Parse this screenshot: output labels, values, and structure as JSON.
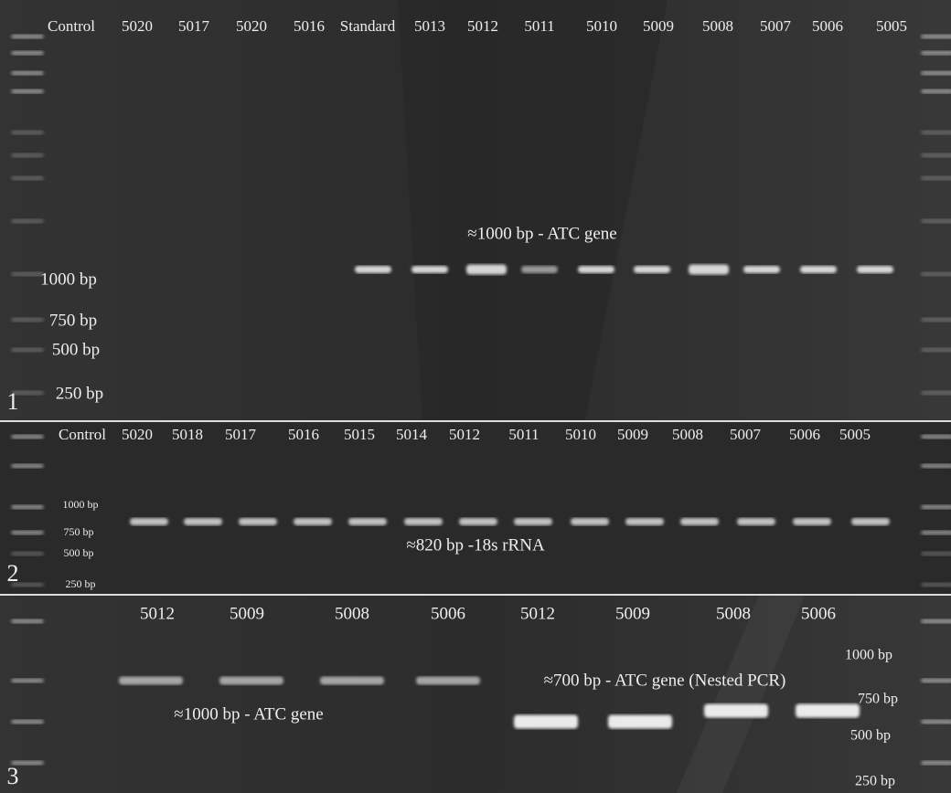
{
  "panels": [
    {
      "number": "1",
      "lanes": [
        "Control",
        "5020",
        "5017",
        "5020",
        "5016",
        "Standard",
        "5013",
        "5012",
        "5011",
        "5010",
        "5009",
        "5008",
        "5007",
        "5006",
        "5005"
      ],
      "markers": [
        "1000 bp",
        "750 bp",
        "500 bp",
        "250 bp"
      ],
      "annotations": [
        "≈1000 bp - ATC gene"
      ]
    },
    {
      "number": "2",
      "lanes": [
        "Control",
        "5020",
        "5018",
        "5017",
        "5016",
        "5015",
        "5014",
        "5012",
        "5011",
        "5010",
        "5009",
        "5008",
        "5007",
        "5006",
        "5005"
      ],
      "markers": [
        "1000 bp",
        "750 bp",
        "500 bp",
        "250 bp"
      ],
      "annotations": [
        "≈820 bp -18s  rRNA"
      ]
    },
    {
      "number": "3",
      "lanes": [
        "5012",
        "5009",
        "5008",
        "5006",
        "5012",
        "5009",
        "5008",
        "5006"
      ],
      "markers": [
        "1000 bp",
        "750 bp",
        "500 bp",
        "250 bp"
      ],
      "annotations": [
        "≈1000 bp - ATC gene",
        "≈700 bp - ATC gene (Nested PCR)"
      ]
    }
  ]
}
